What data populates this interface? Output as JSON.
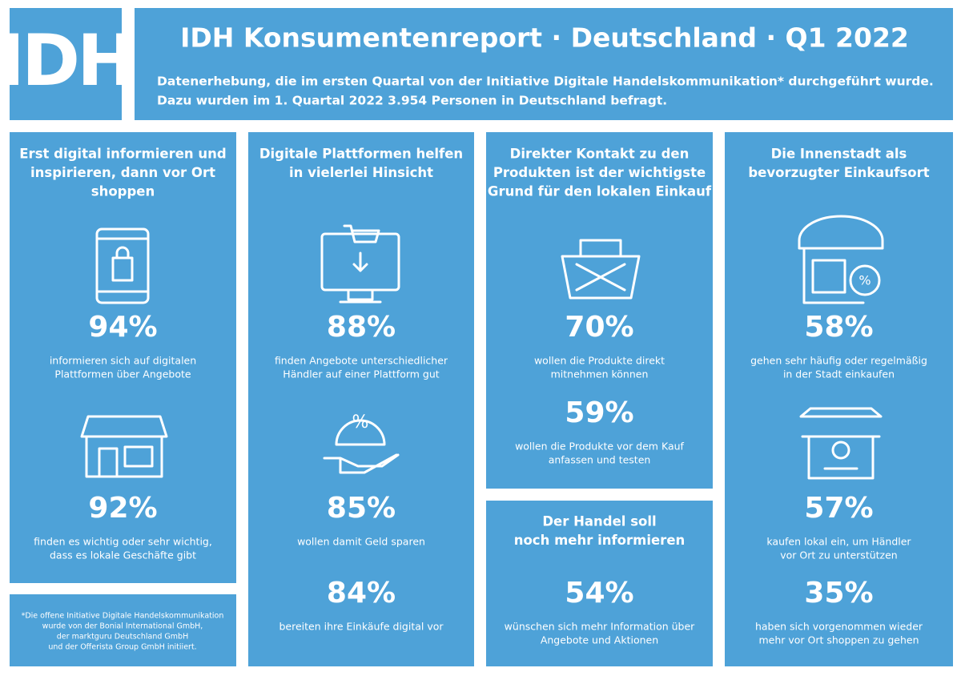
{
  "header": {
    "logo": "IDH",
    "title": "IDH Konsumentenreport · Deutschland · Q1 2022",
    "subtitle": [
      "Datenerhebung, die im ersten Quartal von der Initiative Digitale Handelskommunikation* durchgeführt wurde.",
      "Dazu wurden im 1. Quartal 2022 3.954 Personen in Deutschland befragt."
    ]
  },
  "footnote": [
    "*Die offene Initiative Digitale Handelskommunikation",
    "wurde von der Bonial International GmbH,",
    "der marktguru Deutschland GmbH",
    "und der Offerista Group GmbH initiiert."
  ],
  "panels": [
    {
      "title": [
        "Erst digital informieren und",
        "inspirieren, dann vor Ort",
        "shoppen"
      ],
      "stats": [
        {
          "value": "94%",
          "text": [
            "informieren sich auf digitalen",
            "Plattformen über Angebote"
          ]
        },
        {
          "value": "92%",
          "text": [
            "finden es wichtig oder sehr wichtig,",
            "dass es lokale Geschäfte gibt"
          ]
        }
      ]
    },
    {
      "title": [
        "Digitale Plattformen helfen",
        "in vielerlei Hinsicht"
      ],
      "stats": [
        {
          "value": "88%",
          "text": [
            "finden Angebote unterschiedlicher",
            "Händler auf einer Plattform gut"
          ]
        },
        {
          "value": "85%",
          "text": [
            "wollen damit Geld sparen"
          ]
        },
        {
          "value": "84%",
          "text": [
            "bereiten ihre Einkäufe digital vor"
          ]
        }
      ]
    },
    {
      "title": [
        "Direkter Kontakt zu den",
        "Produkten ist der wichtigste",
        "Grund für den lokalen Einkauf"
      ],
      "stats": [
        {
          "value": "70%",
          "text": [
            "wollen die Produkte direkt",
            "mitnehmen können"
          ]
        },
        {
          "value": "59%",
          "text": [
            "wollen die Produkte vor dem Kauf",
            "anfassen und testen"
          ]
        }
      ]
    },
    {
      "title": [
        "Der Handel soll",
        "noch mehr informieren"
      ],
      "stats": [
        {
          "value": "54%",
          "text": [
            "wünschen sich mehr Information über",
            "Angebote und Aktionen"
          ]
        }
      ]
    },
    {
      "title": [
        "Die Innenstadt als",
        "bevorzugter Einkaufsort"
      ],
      "stats": [
        {
          "value": "58%",
          "text": [
            "gehen sehr häufig oder regelmäßig",
            "in der Stadt einkaufen"
          ]
        },
        {
          "value": "57%",
          "text": [
            "kaufen lokal ein, um Händler",
            "vor Ort zu unterstützen"
          ]
        },
        {
          "value": "35%",
          "text": [
            "haben sich vorgenommen wieder",
            "mehr vor Ort shoppen zu gehen"
          ]
        }
      ]
    }
  ]
}
